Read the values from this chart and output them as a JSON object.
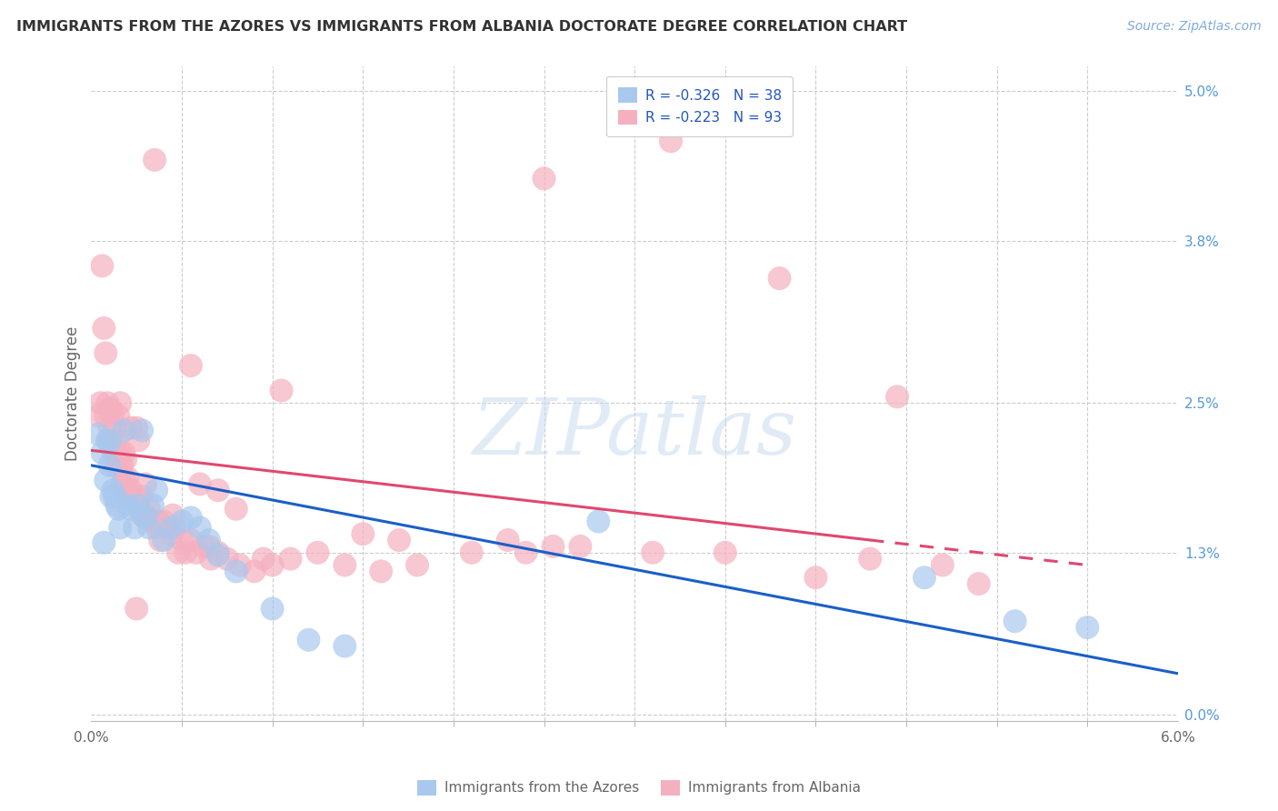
{
  "title": "IMMIGRANTS FROM THE AZORES VS IMMIGRANTS FROM ALBANIA DOCTORATE DEGREE CORRELATION CHART",
  "source": "Source: ZipAtlas.com",
  "ylabel": "Doctorate Degree",
  "y_grid_vals": [
    0.0,
    1.3,
    2.5,
    3.8,
    5.0
  ],
  "x_lim": [
    0.0,
    6.0
  ],
  "y_lim": [
    -0.05,
    5.2
  ],
  "legend_label1": "Immigrants from the Azores",
  "legend_label2": "Immigrants from Albania",
  "r1": "-0.326",
  "n1": "38",
  "r2": "-0.223",
  "n2": "93",
  "color_blue": "#A8C8EE",
  "color_pink": "#F5B0C0",
  "color_blue_line": "#1A5FC8",
  "color_pink_line": "#E04870",
  "blue_x": [
    0.04,
    0.06,
    0.07,
    0.08,
    0.09,
    0.1,
    0.1,
    0.11,
    0.12,
    0.13,
    0.14,
    0.15,
    0.16,
    0.18,
    0.2,
    0.22,
    0.24,
    0.26,
    0.28,
    0.3,
    0.32,
    0.34,
    0.36,
    0.4,
    0.44,
    0.5,
    0.55,
    0.6,
    0.65,
    0.7,
    0.8,
    1.0,
    1.2,
    1.4,
    2.8,
    4.6,
    5.1,
    5.5
  ],
  "blue_y": [
    2.25,
    2.1,
    1.38,
    1.88,
    2.2,
    2.18,
    2.0,
    1.75,
    1.8,
    1.75,
    1.68,
    1.65,
    1.5,
    2.28,
    1.68,
    1.65,
    1.5,
    1.68,
    2.28,
    1.58,
    1.5,
    1.68,
    1.8,
    1.4,
    1.5,
    1.55,
    1.58,
    1.5,
    1.4,
    1.28,
    1.15,
    0.85,
    0.6,
    0.55,
    1.55,
    1.1,
    0.75,
    0.7
  ],
  "pink_x": [
    0.04,
    0.05,
    0.06,
    0.07,
    0.08,
    0.08,
    0.09,
    0.09,
    0.1,
    0.1,
    0.11,
    0.11,
    0.12,
    0.12,
    0.13,
    0.13,
    0.14,
    0.14,
    0.15,
    0.15,
    0.16,
    0.17,
    0.17,
    0.18,
    0.18,
    0.19,
    0.2,
    0.2,
    0.22,
    0.22,
    0.24,
    0.25,
    0.26,
    0.27,
    0.28,
    0.28,
    0.3,
    0.3,
    0.32,
    0.33,
    0.34,
    0.36,
    0.37,
    0.38,
    0.4,
    0.42,
    0.44,
    0.46,
    0.48,
    0.5,
    0.52,
    0.55,
    0.58,
    0.62,
    0.66,
    0.7,
    0.75,
    0.82,
    0.9,
    1.0,
    1.1,
    1.25,
    1.4,
    1.6,
    1.8,
    2.1,
    2.4,
    2.7,
    3.1,
    3.5,
    3.2,
    3.8,
    4.3,
    4.7,
    4.9,
    0.35,
    0.55,
    1.05,
    2.55,
    4.0,
    0.6,
    0.8,
    1.5,
    2.3,
    0.7,
    0.95,
    1.7,
    0.16,
    0.25,
    0.45,
    0.65,
    2.5,
    4.45
  ],
  "pink_y": [
    2.4,
    2.5,
    3.6,
    3.1,
    2.9,
    2.4,
    2.5,
    2.2,
    2.45,
    2.3,
    2.45,
    2.2,
    2.4,
    2.1,
    2.3,
    2.0,
    2.2,
    2.1,
    2.4,
    2.0,
    2.1,
    2.0,
    1.85,
    2.1,
    1.9,
    2.05,
    1.9,
    1.75,
    2.3,
    1.8,
    1.75,
    2.3,
    2.2,
    1.65,
    1.75,
    1.6,
    1.85,
    1.6,
    1.65,
    1.55,
    1.55,
    1.5,
    1.55,
    1.4,
    1.55,
    1.5,
    1.45,
    1.5,
    1.3,
    1.4,
    1.3,
    1.4,
    1.3,
    1.35,
    1.25,
    1.3,
    1.25,
    1.2,
    1.15,
    1.2,
    1.25,
    1.3,
    1.2,
    1.15,
    1.2,
    1.3,
    1.3,
    1.35,
    1.3,
    1.3,
    4.6,
    3.5,
    1.25,
    1.2,
    1.05,
    4.45,
    2.8,
    2.6,
    1.35,
    1.1,
    1.85,
    1.65,
    1.45,
    1.4,
    1.8,
    1.25,
    1.4,
    2.5,
    0.85,
    1.6,
    1.35,
    4.3,
    2.55
  ],
  "blue_line": {
    "x0": 0.0,
    "x1": 6.0,
    "y0": 2.0,
    "y1": 0.33
  },
  "pink_line": {
    "x0": 0.0,
    "x1": 5.5,
    "y0": 2.12,
    "y1": 1.2
  },
  "pink_line_solid_end": 4.3,
  "x_minor_ticks": [
    0.5,
    1.0,
    1.5,
    2.0,
    2.5,
    3.0,
    3.5,
    4.0,
    4.5,
    5.0,
    5.5
  ],
  "watermark_text": "ZIPatlas",
  "title_fontsize": 11.5,
  "source_fontsize": 10,
  "axis_label_fontsize": 11,
  "legend_fontsize": 11
}
